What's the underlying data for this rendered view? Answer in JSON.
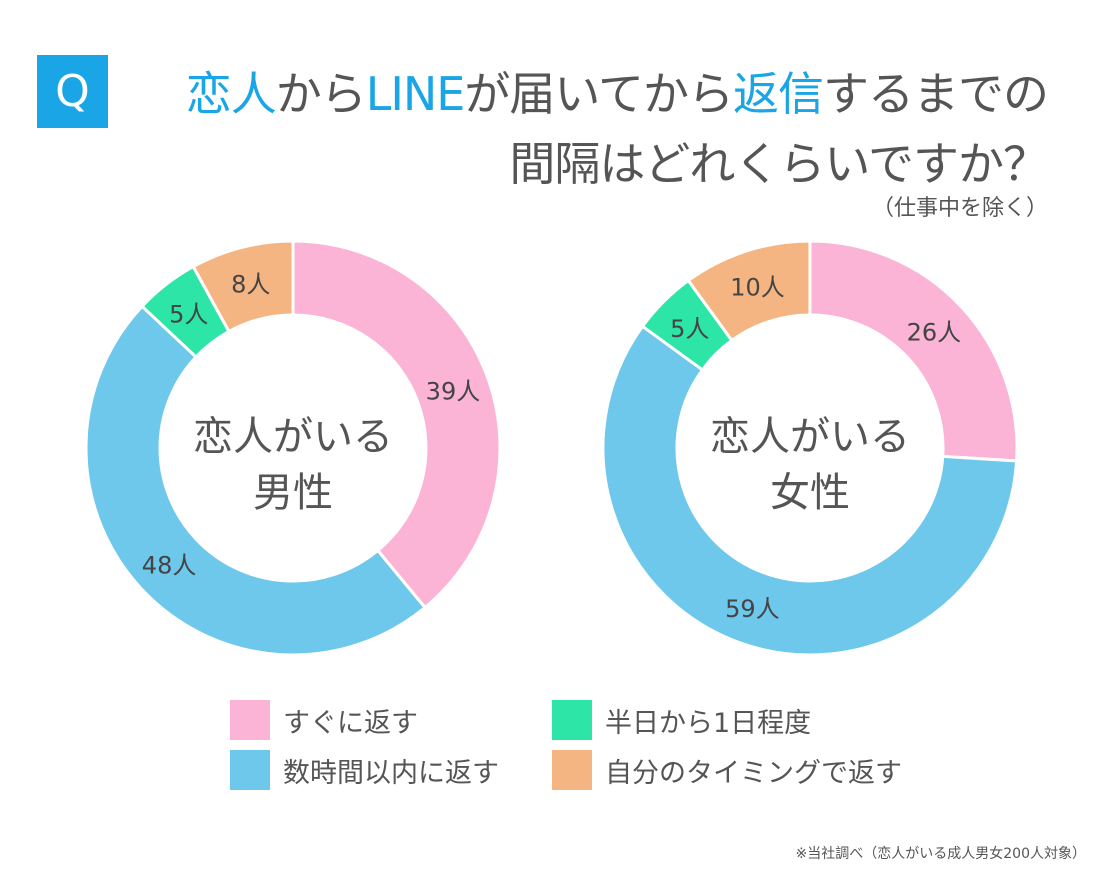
{
  "title": {
    "q_label": "Q",
    "line1_parts": [
      {
        "text": "恋人",
        "highlight": true
      },
      {
        "text": "から",
        "highlight": false
      },
      {
        "text": "LINE",
        "highlight": true
      },
      {
        "text": "が届いてから",
        "highlight": false
      },
      {
        "text": "返信",
        "highlight": true
      },
      {
        "text": "するまでの",
        "highlight": false
      }
    ],
    "line2": "間隔はどれくらいですか？",
    "subtitle": "（仕事中を除く）"
  },
  "colors": {
    "accent": "#1aa5e6",
    "pink": "#fbb3d6",
    "blue": "#6dc8ec",
    "green": "#2de5a6",
    "orange": "#f4b583"
  },
  "chart_data": [
    {
      "type": "pie",
      "donut": true,
      "center_label": [
        "恋人がいる",
        "男性"
      ],
      "categories": [
        "すぐに返す",
        "数時間以内に返す",
        "半日から1日程度",
        "自分のタイミングで返す"
      ],
      "values": [
        39,
        48,
        5,
        8
      ],
      "data_labels": [
        "39人",
        "48人",
        "5人",
        "8人"
      ]
    },
    {
      "type": "pie",
      "donut": true,
      "center_label": [
        "恋人がいる",
        "女性"
      ],
      "categories": [
        "すぐに返す",
        "数時間以内に返す",
        "半日から1日程度",
        "自分のタイミングで返す"
      ],
      "values": [
        26,
        59,
        5,
        10
      ],
      "data_labels": [
        "26人",
        "59人",
        "5人",
        "10人"
      ]
    }
  ],
  "legend": [
    {
      "label": "すぐに返す",
      "color": "#fbb3d6"
    },
    {
      "label": "半日から1日程度",
      "color": "#2de5a6"
    },
    {
      "label": "数時間以内に返す",
      "color": "#6dc8ec"
    },
    {
      "label": "自分のタイミングで返す",
      "color": "#f4b583"
    }
  ],
  "footnote": "※当社調べ（恋人がいる成人男女200人対象）"
}
